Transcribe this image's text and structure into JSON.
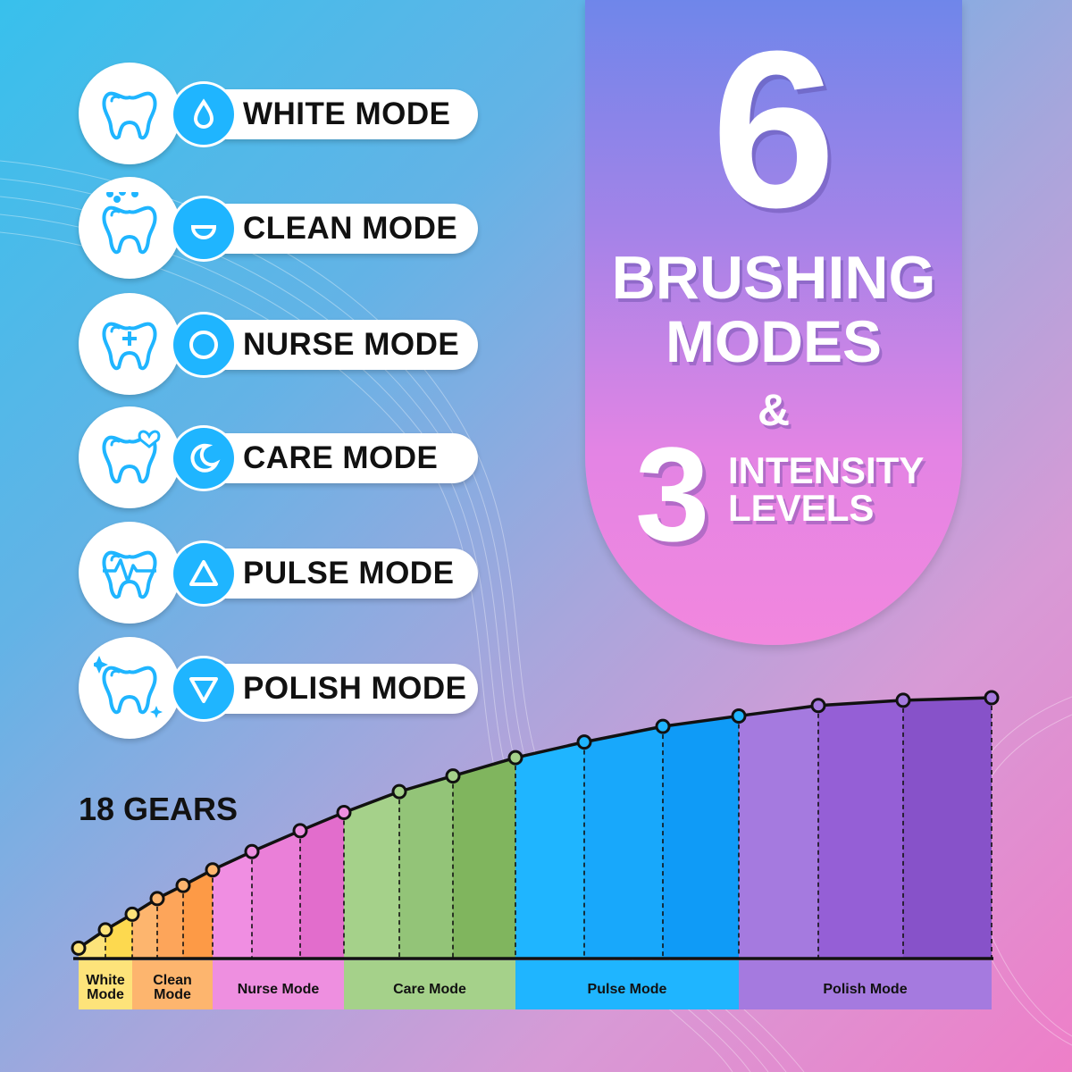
{
  "modes": [
    {
      "label": "WHITE MODE",
      "tooth_icon": "tooth-icon",
      "symbol_icon": "water-drop-icon"
    },
    {
      "label": "CLEAN MODE",
      "tooth_icon": "tooth-bubbles-icon",
      "symbol_icon": "half-circle-icon"
    },
    {
      "label": "NURSE MODE",
      "tooth_icon": "tooth-plus-icon",
      "symbol_icon": "circle-icon"
    },
    {
      "label": "CARE MODE",
      "tooth_icon": "tooth-heart-icon",
      "symbol_icon": "moon-icon"
    },
    {
      "label": "PULSE MODE",
      "tooth_icon": "tooth-pulse-icon",
      "symbol_icon": "triangle-up-icon"
    },
    {
      "label": "POLISH MODE",
      "tooth_icon": "tooth-sparkle-icon",
      "symbol_icon": "triangle-down-icon"
    }
  ],
  "panel": {
    "number_modes": "6",
    "line1": "BRUSHING",
    "line2": "MODES",
    "ampersand": "&",
    "number_levels": "3",
    "levels_line1": "INTENSITY",
    "levels_line2": "LEVELS"
  },
  "colors": {
    "accent": "#1fb5ff",
    "panel_top": "#6f86ea",
    "panel_bottom": "#f287de"
  },
  "chart_data": {
    "type": "area",
    "title": "18 GEARS",
    "grid": false,
    "gears": [
      1,
      2,
      3,
      4,
      5,
      6,
      7,
      8,
      9,
      10,
      11,
      12,
      13,
      14,
      15,
      16,
      17,
      18
    ],
    "relative_intensity": [
      4,
      11,
      17,
      23,
      28,
      34,
      41,
      49,
      56,
      64,
      70,
      77,
      83,
      89,
      93,
      97,
      99,
      100
    ],
    "groups": [
      {
        "label": "White Mode",
        "line1": "White",
        "line2": "Mode",
        "gears": [
          1,
          2,
          3
        ],
        "color": "#fde37a",
        "shades": [
          "#fde37a",
          "#fdd94f"
        ]
      },
      {
        "label": "Clean Mode",
        "line1": "Clean",
        "line2": "Mode",
        "gears": [
          4,
          5,
          6
        ],
        "color": "#fdb56e",
        "shades": [
          "#fdb56e",
          "#fda55a",
          "#fd9a46"
        ]
      },
      {
        "label": "Nurse Mode",
        "gears": [
          7,
          8,
          9
        ],
        "color": "#ee8fe0",
        "shades": [
          "#f08ee2",
          "#ea7fd8",
          "#e26dcc"
        ]
      },
      {
        "label": "Care Mode",
        "gears": [
          10,
          11,
          12
        ],
        "color": "#a5d18a",
        "shades": [
          "#a5d18a",
          "#93c478",
          "#80b55e"
        ]
      },
      {
        "label": "Pulse Mode",
        "gears": [
          13,
          14,
          15
        ],
        "color": "#1fb5ff",
        "shades": [
          "#1fb5ff",
          "#18a8fb",
          "#0f9bf7"
        ]
      },
      {
        "label": "Polish Mode",
        "gears": [
          16,
          17,
          18
        ],
        "color": "#a57adf",
        "shades": [
          "#a57adf",
          "#955fd6",
          "#8752c9"
        ]
      }
    ]
  }
}
